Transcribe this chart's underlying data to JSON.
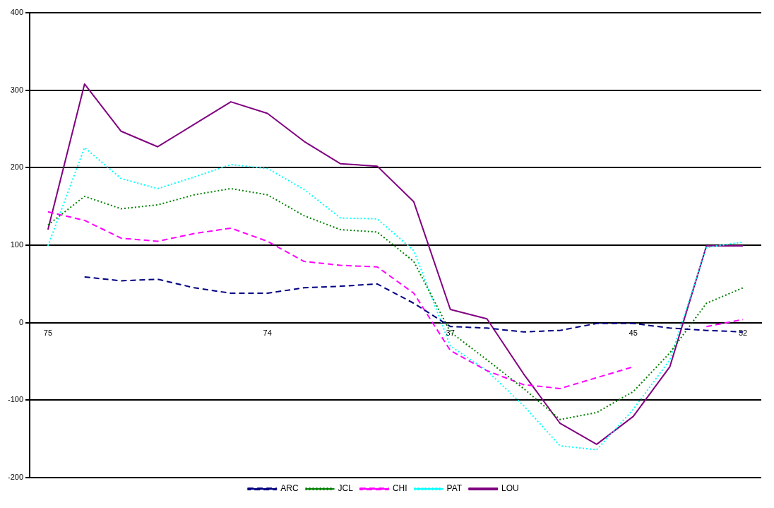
{
  "chart_data": {
    "type": "line",
    "categories": [
      "75",
      null,
      null,
      null,
      null,
      null,
      "74",
      null,
      null,
      null,
      null,
      "37",
      null,
      null,
      null,
      null,
      "45",
      null,
      null,
      "52"
    ],
    "series": [
      {
        "name": "ARC",
        "color": "#000080",
        "line_style": "dashed",
        "values": [
          null,
          59,
          54,
          56,
          45,
          38,
          38,
          45,
          47,
          50,
          25,
          -5,
          -7,
          -12,
          -10,
          -1,
          -1,
          -7,
          -10,
          -12
        ]
      },
      {
        "name": "JCL",
        "color": "#008000",
        "line_style": "dotted",
        "values": [
          126,
          163,
          147,
          152,
          165,
          173,
          165,
          138,
          120,
          117,
          79,
          -12,
          -48,
          -85,
          -125,
          -116,
          -89,
          -39,
          25,
          45
        ]
      },
      {
        "name": "CHI",
        "color": "#ff00ff",
        "line_style": "dashed",
        "values": [
          143,
          132,
          109,
          105,
          115,
          122,
          105,
          79,
          74,
          72,
          38,
          -36,
          -62,
          -80,
          -85,
          -71,
          -57,
          null,
          -5,
          4
        ]
      },
      {
        "name": "PAT",
        "color": "#00ffff",
        "line_style": "dotted",
        "values": [
          99,
          226,
          186,
          173,
          188,
          204,
          199,
          172,
          135,
          134,
          93,
          -30,
          -62,
          -107,
          -159,
          -164,
          -112,
          -48,
          97,
          104
        ]
      },
      {
        "name": "LOU",
        "color": "#800080",
        "line_style": "solid",
        "values": [
          120,
          308,
          247,
          227,
          256,
          285,
          270,
          234,
          205,
          202,
          156,
          17,
          5,
          -66,
          -130,
          -157,
          -121,
          -57,
          99,
          99
        ]
      }
    ],
    "ylim": [
      -200,
      400
    ],
    "yticks": [
      -200,
      -100,
      0,
      100,
      200,
      300,
      400
    ],
    "grid": "y",
    "legend": "bottom",
    "marker": "none"
  }
}
